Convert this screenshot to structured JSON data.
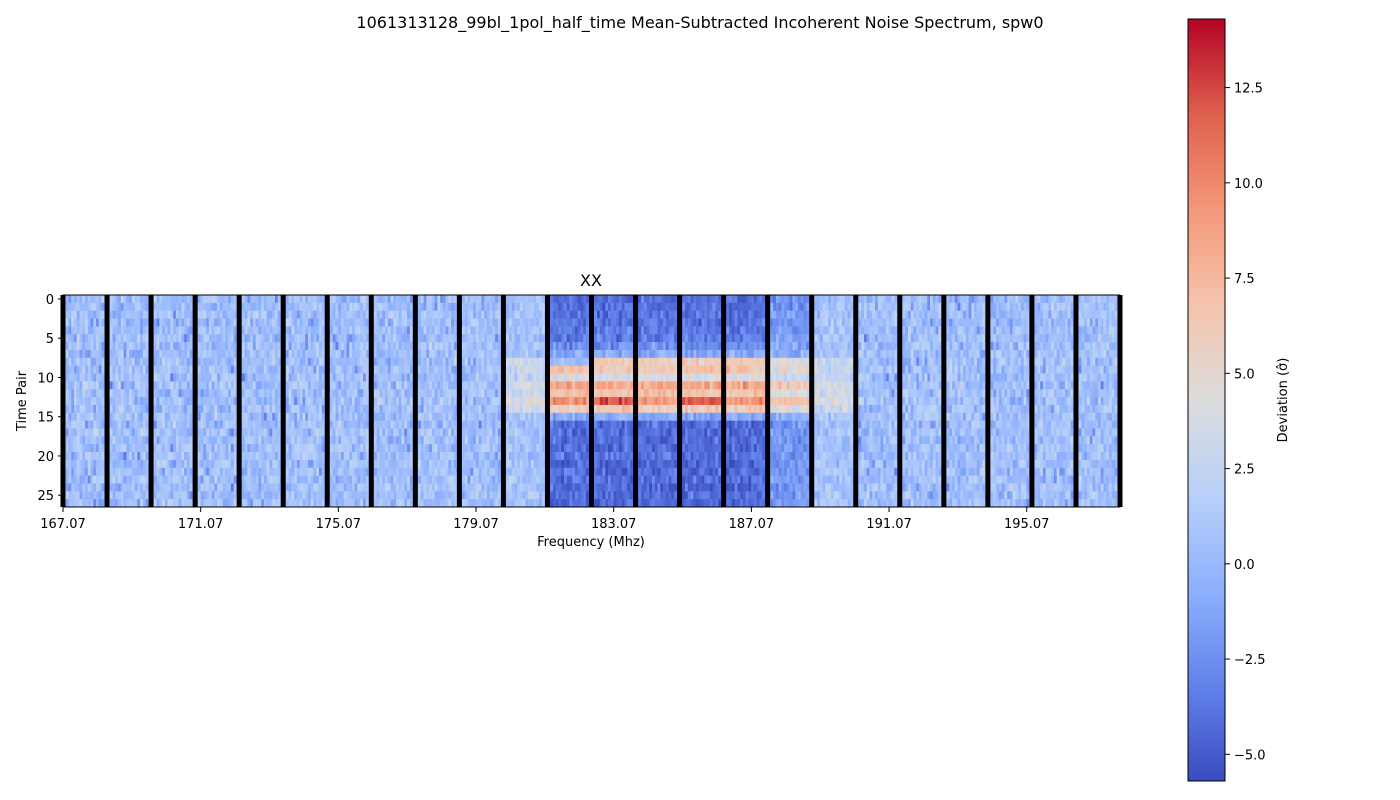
{
  "figure": {
    "suptitle": "1061313128_99bl_1pol_half_time Mean-Subtracted Incoherent Noise Spectrum, spw0"
  },
  "chart_data": {
    "type": "heatmap",
    "title": "XX",
    "xlabel": "Frequency (Mhz)",
    "ylabel": "Time Pair",
    "x_tick_labels": [
      "167.07",
      "171.07",
      "175.07",
      "179.07",
      "183.07",
      "187.07",
      "191.07",
      "195.07"
    ],
    "x_tick_values": [
      167.07,
      171.07,
      175.07,
      179.07,
      183.07,
      187.07,
      191.07,
      195.07
    ],
    "x_range": [
      167.07,
      197.78
    ],
    "y_tick_labels": [
      "0",
      "5",
      "10",
      "15",
      "20",
      "25"
    ],
    "y_tick_values": [
      0,
      5,
      10,
      15,
      20,
      25
    ],
    "y_range": [
      -0.5,
      26.5
    ],
    "n_time_pairs": 27,
    "n_coarse_channels": 24,
    "fine_channels_per_coarse": 16,
    "flagged_channel_color": "#000000",
    "coarse_channel_profiles": [
      {
        "channel": 0,
        "profile": "noise"
      },
      {
        "channel": 1,
        "profile": "noise"
      },
      {
        "channel": 2,
        "profile": "noise"
      },
      {
        "channel": 3,
        "profile": "noise"
      },
      {
        "channel": 4,
        "profile": "noise"
      },
      {
        "channel": 5,
        "profile": "noise"
      },
      {
        "channel": 6,
        "profile": "noise"
      },
      {
        "channel": 7,
        "profile": "noise"
      },
      {
        "channel": 8,
        "profile": "noise"
      },
      {
        "channel": 9,
        "profile": "noise"
      },
      {
        "channel": 10,
        "profile": "weak-rfi"
      },
      {
        "channel": 11,
        "profile": "rfi-strong"
      },
      {
        "channel": 12,
        "profile": "rfi-strong"
      },
      {
        "channel": 13,
        "profile": "rfi-strong"
      },
      {
        "channel": 14,
        "profile": "rfi-strong"
      },
      {
        "channel": 15,
        "profile": "rfi-strong"
      },
      {
        "channel": 16,
        "profile": "rfi-moderate"
      },
      {
        "channel": 17,
        "profile": "weak-rfi"
      },
      {
        "channel": 18,
        "profile": "noise"
      },
      {
        "channel": 19,
        "profile": "noise"
      },
      {
        "channel": 20,
        "profile": "noise"
      },
      {
        "channel": 21,
        "profile": "noise"
      },
      {
        "channel": 22,
        "profile": "noise"
      },
      {
        "channel": 23,
        "profile": "noise"
      }
    ],
    "time_pair_offsets": [
      -4.0,
      -4.0,
      -3.8,
      -3.8,
      -3.5,
      -3.5,
      -2.5,
      -1.0,
      6.0,
      6.5,
      4.0,
      8.5,
      7.0,
      9.5,
      6.0,
      -1.0,
      -4.2,
      -4.2,
      -4.0,
      -4.2,
      -4.0,
      -4.4,
      -4.2,
      -4.0,
      -4.3,
      -4.1,
      -4.2
    ],
    "colorbar": {
      "label": "Deviation (σ̂)",
      "min": -5.7,
      "max": 14.3,
      "tick_values": [
        -5.0,
        -2.5,
        0.0,
        2.5,
        5.0,
        7.5,
        10.0,
        12.5
      ],
      "tick_labels": [
        "−5.0",
        "−2.5",
        "0.0",
        "2.5",
        "5.0",
        "7.5",
        "10.0",
        "12.5"
      ],
      "colormap": "coolwarm",
      "colormap_stops": [
        "#3b4cc0",
        "#6282ea",
        "#8db0fe",
        "#b8d0f9",
        "#dddddd",
        "#f5c4ac",
        "#f4987a",
        "#de604d",
        "#b40426"
      ]
    }
  }
}
